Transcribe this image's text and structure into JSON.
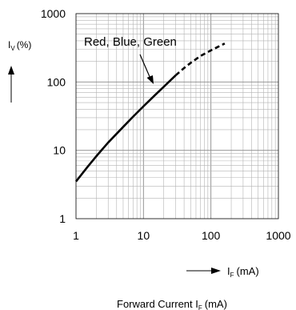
{
  "chart_data": {
    "type": "line",
    "scale": {
      "x": "log",
      "y": "log"
    },
    "xlim": [
      1,
      1000
    ],
    "ylim": [
      1,
      1000
    ],
    "x_ticks": [
      "1",
      "10",
      "100",
      "1000"
    ],
    "y_ticks": [
      "1",
      "10",
      "100",
      "1000"
    ],
    "grid": true,
    "ylabel": {
      "main": "I",
      "sub": "V",
      "unit": "(%)"
    },
    "xlabel": {
      "main": "I",
      "sub": "F",
      "unit": "(mA)"
    },
    "subtitle": {
      "text": "Forward Current I",
      "sub": "F",
      "unit": "(mA)"
    },
    "annotation": "Red, Blue, Green",
    "series": [
      {
        "line": "solid",
        "x": [
          1,
          1.5,
          2,
          3,
          5,
          7,
          10,
          15,
          20,
          30
        ],
        "y": [
          3.5,
          5.8,
          8.2,
          13,
          22,
          31,
          44,
          65,
          85,
          125
        ]
      },
      {
        "line": "dashed",
        "x": [
          30,
          40,
          50,
          70,
          100,
          130,
          160
        ],
        "y": [
          125,
          160,
          190,
          240,
          290,
          330,
          365
        ]
      }
    ]
  }
}
